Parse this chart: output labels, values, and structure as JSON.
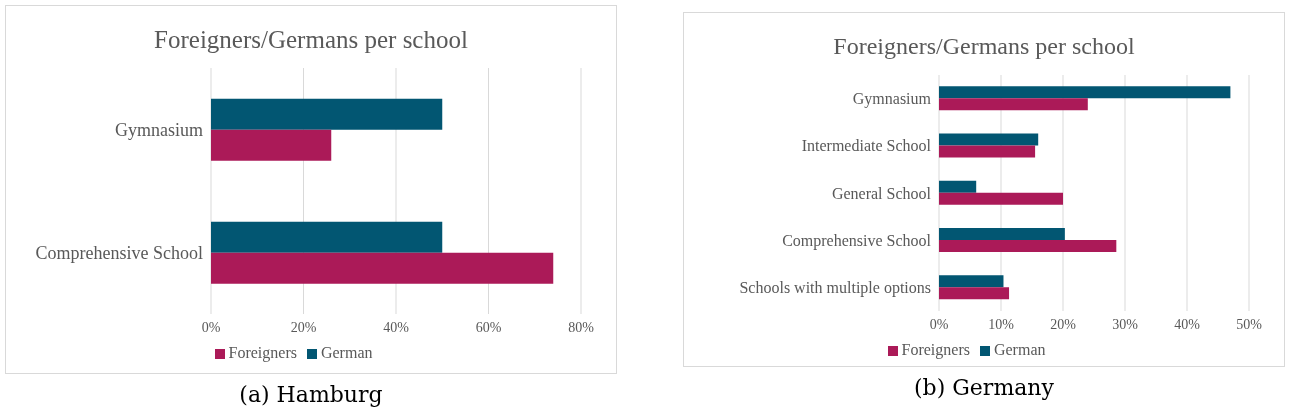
{
  "chart_data": [
    {
      "type": "bar",
      "orientation": "horizontal",
      "title": "Foreigners/Germans per school",
      "subtitle": "(a) Hamburg",
      "categories": [
        "Gymnasium",
        "Comprehensive School"
      ],
      "series": [
        {
          "name": "German",
          "color": "#025672",
          "values": [
            50,
            50
          ]
        },
        {
          "name": "Foreigners",
          "color": "#ab1a58",
          "values": [
            26,
            74
          ]
        }
      ],
      "xlim": [
        0,
        80
      ],
      "xticks": [
        {
          "value": 0,
          "label": "0%"
        },
        {
          "value": 20,
          "label": "20%"
        },
        {
          "value": 40,
          "label": "40%"
        },
        {
          "value": 60,
          "label": "60%"
        },
        {
          "value": 80,
          "label": "80%"
        }
      ],
      "grid": "x",
      "legend": "bottom"
    },
    {
      "type": "bar",
      "orientation": "horizontal",
      "title": "Foreigners/Germans per school",
      "subtitle": "(b) Germany",
      "categories": [
        "Gymnasium",
        "Intermediate School",
        "General School",
        "Comprehensive School",
        "Schools with multiple options"
      ],
      "series": [
        {
          "name": "German",
          "color": "#025672",
          "values": [
            47,
            16,
            6,
            20.3,
            10.4
          ]
        },
        {
          "name": "Foreigners",
          "color": "#ab1a58",
          "values": [
            24,
            15.5,
            20,
            28.6,
            11.3
          ]
        }
      ],
      "xlim": [
        0,
        50
      ],
      "xticks": [
        {
          "value": 0,
          "label": "0%"
        },
        {
          "value": 10,
          "label": "10%"
        },
        {
          "value": 20,
          "label": "20%"
        },
        {
          "value": 30,
          "label": "30%"
        },
        {
          "value": 40,
          "label": "40%"
        },
        {
          "value": 50,
          "label": "50%"
        }
      ],
      "grid": "x",
      "legend": "bottom"
    }
  ]
}
